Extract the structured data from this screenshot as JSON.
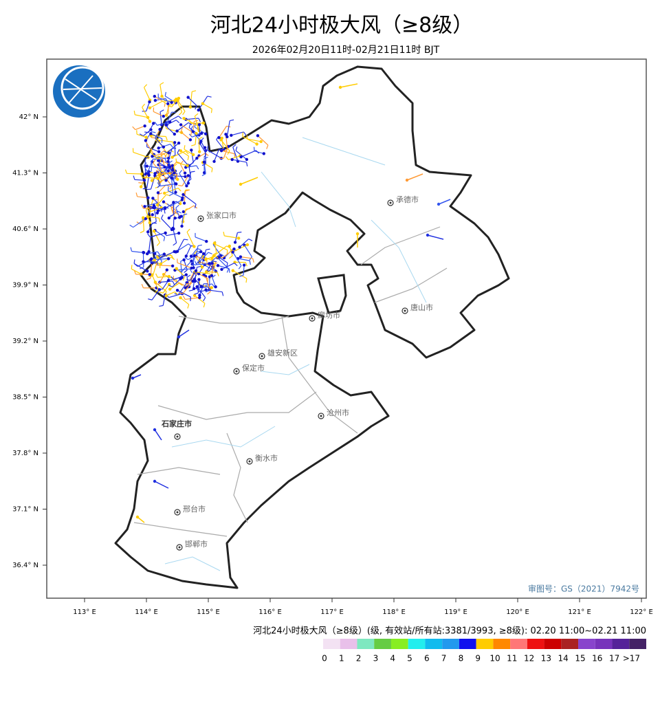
{
  "map": {
    "title": "河北24小时极大风（≥8级）",
    "subtitle": "2026年02月20日11时-02月21日11时 BJT",
    "lat_ticks": [
      {
        "value": 42,
        "label": "42° N"
      },
      {
        "value": 41.3,
        "label": "41.3° N"
      },
      {
        "value": 40.6,
        "label": "40.6° N"
      },
      {
        "value": 39.9,
        "label": "39.9° N"
      },
      {
        "value": 39.2,
        "label": "39.2° N"
      },
      {
        "value": 38.5,
        "label": "38.5° N"
      },
      {
        "value": 37.8,
        "label": "37.8° N"
      },
      {
        "value": 37.1,
        "label": "37.1° N"
      },
      {
        "value": 36.4,
        "label": "36.4° N"
      }
    ],
    "lon_ticks": [
      {
        "value": 113,
        "label": "113° E"
      },
      {
        "value": 114,
        "label": "114° E"
      },
      {
        "value": 115,
        "label": "115° E"
      },
      {
        "value": 116,
        "label": "116° E"
      },
      {
        "value": 117,
        "label": "117° E"
      },
      {
        "value": 118,
        "label": "118° E"
      },
      {
        "value": 119,
        "label": "119° E"
      },
      {
        "value": 120,
        "label": "120° E"
      },
      {
        "value": 121,
        "label": "121° E"
      },
      {
        "value": 122,
        "label": "122° E"
      }
    ],
    "cities": [
      "张家口市",
      "承德市",
      "唐山市",
      "廊坊市",
      "雄安新区",
      "保定市",
      "沧州市",
      "石家庄市",
      "衡水市",
      "邢台市",
      "邯郸市"
    ],
    "review": "审图号：GS（2021）7942号",
    "legend": {
      "title": "河北24小时极大风（≥8级）(级, 有效站/所有站:3381/3993, ≥8级): 02.20 11:00~02.21 11:00",
      "labels": [
        "0",
        "1",
        "2",
        "3",
        "4",
        "5",
        "6",
        "7",
        "8",
        "9",
        "10",
        "11",
        "12",
        "13",
        "14",
        "15",
        "16",
        "17",
        ">17"
      ],
      "colors": [
        "#f3e2f3",
        "#e9c0ea",
        "#7ee8c0",
        "#66cc44",
        "#88ee22",
        "#22eeee",
        "#11bbee",
        "#2299ee",
        "#1111ee",
        "#ffcc00",
        "#ff8800",
        "#ff7777",
        "#ee1111",
        "#cc0000",
        "#aa2222",
        "#8844cc",
        "#7733bb",
        "#552299",
        "#442266"
      ]
    }
  }
}
